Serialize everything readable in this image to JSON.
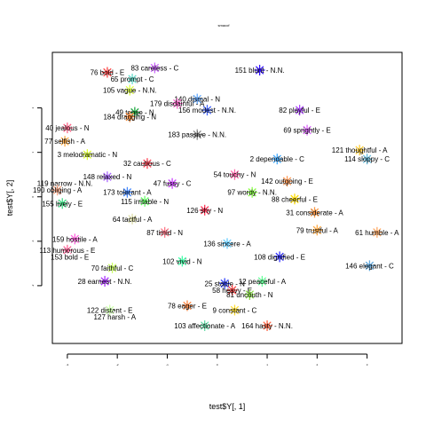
{
  "chart_data": {
    "type": "scatter",
    "title": "smacof",
    "xlabel": "test$Y[, 1]",
    "ylabel": "test$Y[, 2]",
    "xlim": [
      -3.3,
      3.7
    ],
    "ylim": [
      -3.3,
      3.25
    ],
    "xticks": [
      -3,
      -2,
      -1,
      0,
      1,
      2,
      3
    ],
    "yticks": [
      -2,
      -1,
      0,
      1,
      2
    ],
    "grid": false,
    "legend": "none",
    "points": [
      {
        "label": "83 careless - C",
        "x": -1.25,
        "y": 2.9,
        "color": "#cc66ff"
      },
      {
        "label": "76 bold - E",
        "x": -2.2,
        "y": 2.8,
        "color": "#ff4444"
      },
      {
        "label": "65 prompt - C",
        "x": -1.7,
        "y": 2.65,
        "color": "#66ddcc"
      },
      {
        "label": "151 blunt - N.N.",
        "x": 0.85,
        "y": 2.85,
        "color": "#3311ff"
      },
      {
        "label": "105 vague - N.N.",
        "x": -1.75,
        "y": 2.4,
        "color": "#ddff44"
      },
      {
        "label": "140 dismal - N",
        "x": -0.4,
        "y": 2.2,
        "color": "#66aaff"
      },
      {
        "label": "179 disdainful - A",
        "x": -0.8,
        "y": 2.1,
        "color": "#ff66cc"
      },
      {
        "label": "49 tense - N",
        "x": -1.65,
        "y": 1.9,
        "color": "#22aa44"
      },
      {
        "label": "184 dragging - N",
        "x": -1.75,
        "y": 1.8,
        "color": "#ff8833"
      },
      {
        "label": "156 modest - N.N.",
        "x": -0.2,
        "y": 1.95,
        "color": "#4466ff"
      },
      {
        "label": "82 playful - E",
        "x": 1.65,
        "y": 1.95,
        "color": "#aa44ff"
      },
      {
        "label": "40 jealous - N",
        "x": -3.0,
        "y": 1.55,
        "color": "#ff6688"
      },
      {
        "label": "69 sprightly - E",
        "x": 1.8,
        "y": 1.5,
        "color": "#dd66ff"
      },
      {
        "label": "183 passive - N.N.",
        "x": -0.4,
        "y": 1.4,
        "color": "#888888"
      },
      {
        "label": "77 selfish - A",
        "x": -3.05,
        "y": 1.25,
        "color": "#ffaa44"
      },
      {
        "label": "3 melodramatic - N",
        "x": -2.6,
        "y": 0.95,
        "color": "#ddff33"
      },
      {
        "label": "32 cautious - C",
        "x": -1.4,
        "y": 0.75,
        "color": "#ff4455"
      },
      {
        "label": "114 sloppy - C",
        "x": 3.0,
        "y": 0.85,
        "color": "#66bbdd"
      },
      {
        "label": "121 thoughtful - A",
        "x": 2.85,
        "y": 1.05,
        "color": "#ffcc33"
      },
      {
        "label": "119 narrow - N.N.",
        "x": -3.05,
        "y": 0.3,
        "color": "#ffffff"
      },
      {
        "label": "190 obliging - A",
        "x": -3.2,
        "y": 0.15,
        "color": "#ffaa88"
      },
      {
        "label": "155 lively - E",
        "x": -3.1,
        "y": -0.15,
        "color": "#44dd88"
      },
      {
        "label": "64 tactful - A",
        "x": -1.7,
        "y": -0.5,
        "color": "#ddddaa"
      },
      {
        "label": "115 irritable - N",
        "x": -1.45,
        "y": -0.1,
        "color": "#66ff66"
      },
      {
        "label": "173 tolerant - A",
        "x": -1.8,
        "y": 0.1,
        "color": "#4488ff"
      },
      {
        "label": "148 relaxed - N",
        "x": -2.2,
        "y": 0.45,
        "color": "#aa66ff"
      },
      {
        "label": "61 humble - A",
        "x": 3.2,
        "y": -0.8,
        "color": "#ffaa66"
      },
      {
        "label": "79 trustful - A",
        "x": 2.0,
        "y": -0.75,
        "color": "#ffaa44"
      },
      {
        "label": "159 hostile - A",
        "x": -2.85,
        "y": -0.95,
        "color": "#ff66dd"
      },
      {
        "label": "113 humorous - E",
        "x": -3.0,
        "y": -1.2,
        "color": "#ff6699"
      },
      {
        "label": "153 bold - E",
        "x": -2.95,
        "y": -1.35,
        "color": "#ffffff"
      },
      {
        "label": "70 faithful - C",
        "x": -2.1,
        "y": -1.6,
        "color": "#ccff66"
      },
      {
        "label": "102 vivid - N",
        "x": -0.7,
        "y": -1.45,
        "color": "#44ffaa"
      },
      {
        "label": "108 dignified - E",
        "x": 1.25,
        "y": -1.35,
        "color": "#3333ff"
      },
      {
        "label": "146 elegant - C",
        "x": 3.05,
        "y": -1.55,
        "color": "#66aadd"
      },
      {
        "label": "28 earnest - N.N.",
        "x": -2.25,
        "y": -1.9,
        "color": "#aa33ff"
      },
      {
        "label": "25 stable - N",
        "x": 0.15,
        "y": -1.95,
        "color": "#3344ff"
      },
      {
        "label": "58 heavy - E",
        "x": 0.3,
        "y": -2.1,
        "color": "#ff4444"
      },
      {
        "label": "81 uncouth - N",
        "x": 0.65,
        "y": -2.2,
        "color": "#88dd44"
      },
      {
        "label": "122 distant - E",
        "x": -2.15,
        "y": -2.55,
        "color": "#ccffaa"
      },
      {
        "label": "127 harsh - A",
        "x": -2.05,
        "y": -2.7,
        "color": "#ffffff"
      },
      {
        "label": "78 eager - E",
        "x": -0.6,
        "y": -2.45,
        "color": "#ff8844"
      },
      {
        "label": "9 constant - C",
        "x": 0.35,
        "y": -2.55,
        "color": "#ffdd33"
      },
      {
        "label": "103 affectionate - A",
        "x": -0.25,
        "y": -2.9,
        "color": "#66ddaa"
      },
      {
        "label": "164 hasty - N.N.",
        "x": 1.0,
        "y": -2.9,
        "color": "#ff6644"
      },
      {
        "label": "31 considerate - A",
        "x": 1.95,
        "y": -0.35,
        "color": "#ff9944"
      },
      {
        "label": "2 dependable - C",
        "x": 1.2,
        "y": 0.85,
        "color": "#44aaff"
      },
      {
        "label": "54 touchy - N",
        "x": 0.35,
        "y": 0.5,
        "color": "#ff66aa"
      },
      {
        "label": "97 wordy - N.N.",
        "x": 0.7,
        "y": 0.1,
        "color": "#88ff44"
      },
      {
        "label": "126 shy - N",
        "x": -0.25,
        "y": -0.3,
        "color": "#ff3355"
      },
      {
        "label": "88 cheerful - E",
        "x": 1.55,
        "y": -0.05,
        "color": "#ffdd00"
      },
      {
        "label": "47 fussy - C",
        "x": -0.9,
        "y": 0.3,
        "color": "#cc44ff"
      },
      {
        "label": "136 sincere - A",
        "x": 0.2,
        "y": -1.05,
        "color": "#66ccff"
      },
      {
        "label": "12 peaceful - A",
        "x": 0.9,
        "y": -1.9,
        "color": "#66ff99"
      },
      {
        "label": "87 timid - N",
        "x": -1.05,
        "y": -0.8,
        "color": "#ff7788"
      },
      {
        "label": "142 outgoing - E",
        "x": 1.4,
        "y": 0.35,
        "color": "#ff9955"
      }
    ]
  }
}
